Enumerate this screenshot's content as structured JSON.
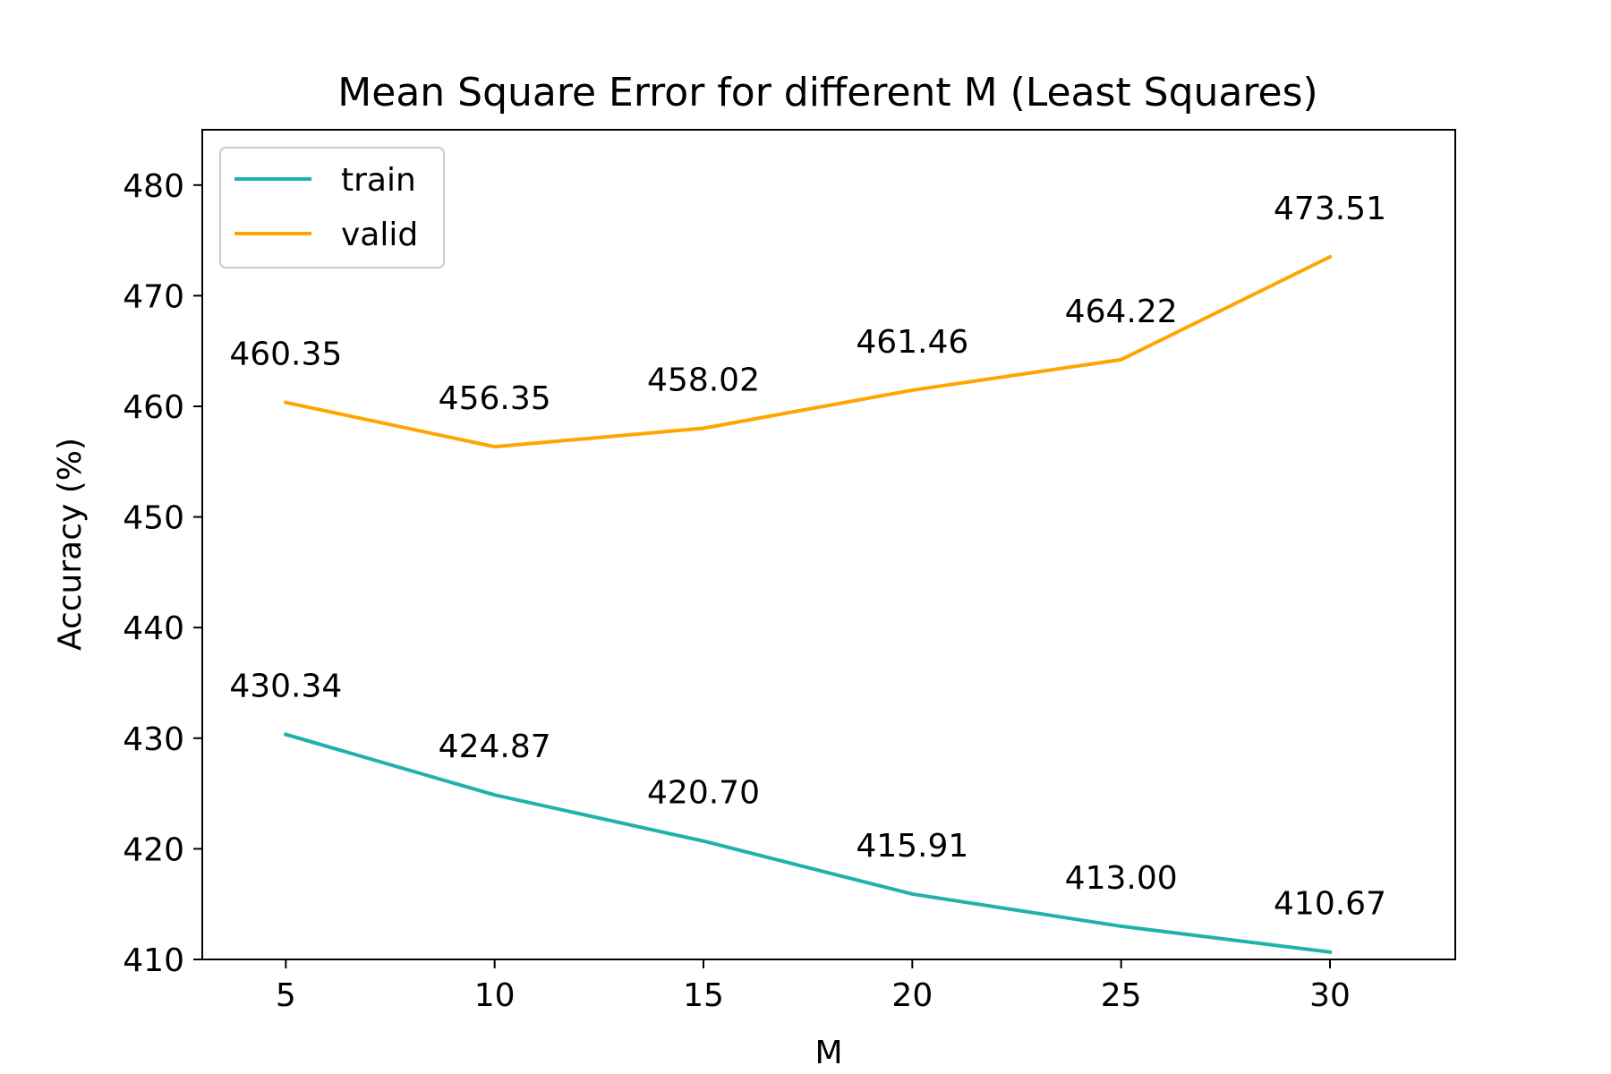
{
  "chart_data": {
    "type": "line",
    "title": "Mean Square Error for different M (Least Squares)",
    "xlabel": "M",
    "ylabel": "Accuracy (%)",
    "x": [
      5,
      10,
      15,
      20,
      25,
      30
    ],
    "xlim": [
      3,
      33
    ],
    "ylim": [
      410,
      485
    ],
    "xticks": [
      5,
      10,
      15,
      20,
      25,
      30
    ],
    "yticks": [
      410,
      420,
      430,
      440,
      450,
      460,
      470,
      480
    ],
    "grid": false,
    "legend_position": "upper-left",
    "series": [
      {
        "name": "train",
        "color": "#20b2aa",
        "values": [
          430.34,
          424.87,
          420.7,
          415.91,
          413.0,
          410.67
        ],
        "labels": [
          "430.34",
          "424.87",
          "420.70",
          "415.91",
          "413.00",
          "410.67"
        ]
      },
      {
        "name": "valid",
        "color": "#ffa500",
        "values": [
          460.35,
          456.35,
          458.02,
          461.46,
          464.22,
          473.51
        ],
        "labels": [
          "460.35",
          "456.35",
          "458.02",
          "461.46",
          "464.22",
          "473.51"
        ]
      }
    ]
  }
}
